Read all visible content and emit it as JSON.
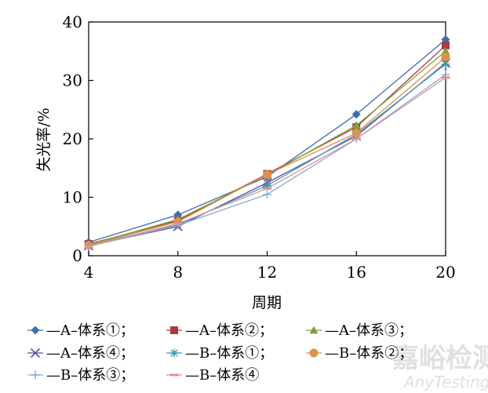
{
  "chart_data": {
    "type": "line",
    "xlabel": "周期",
    "ylabel": "失光率/%",
    "x": [
      4,
      8,
      12,
      16,
      20
    ],
    "xlim": [
      4,
      20
    ],
    "ylim": [
      0,
      40
    ],
    "xticks": [
      "4",
      "8",
      "12",
      "16",
      "20"
    ],
    "yticks": [
      "0",
      "10",
      "20",
      "30",
      "40"
    ],
    "grid": false,
    "legend_position": "bottom",
    "series": [
      {
        "name": "—A–体系①；",
        "color": "#3c6fa8",
        "marker": "diamond",
        "values": [
          2.3,
          7.0,
          13.5,
          24.2,
          37.0
        ]
      },
      {
        "name": "—A–体系②；",
        "color": "#a83b3b",
        "marker": "square",
        "values": [
          2.0,
          6.0,
          14.0,
          22.0,
          36.0
        ]
      },
      {
        "name": "—A–体系③；",
        "color": "#7f9f3c",
        "marker": "triangle",
        "values": [
          1.9,
          6.2,
          13.8,
          22.3,
          35.0
        ]
      },
      {
        "name": "—A–体系④；",
        "color": "#6a4f9e",
        "marker": "x",
        "values": [
          1.7,
          5.0,
          12.5,
          20.5,
          33.0
        ]
      },
      {
        "name": "—B–体系①；",
        "color": "#3d9fb5",
        "marker": "star",
        "values": [
          1.8,
          5.3,
          12.0,
          20.8,
          32.8
        ]
      },
      {
        "name": "—B–体系②；",
        "color": "#e0904a",
        "marker": "circle",
        "values": [
          1.8,
          5.8,
          13.9,
          21.0,
          34.0
        ]
      },
      {
        "name": "—B–体系③；",
        "color": "#8aa8d4",
        "marker": "plus",
        "values": [
          1.6,
          5.2,
          10.5,
          20.0,
          31.0
        ]
      },
      {
        "name": "—B–体系④",
        "color": "#d99595",
        "marker": "dash",
        "values": [
          1.6,
          5.5,
          11.5,
          20.0,
          30.5
        ]
      }
    ]
  },
  "watermark": {
    "cn": "嘉峪检测网",
    "en": "AnyTesting.com"
  }
}
